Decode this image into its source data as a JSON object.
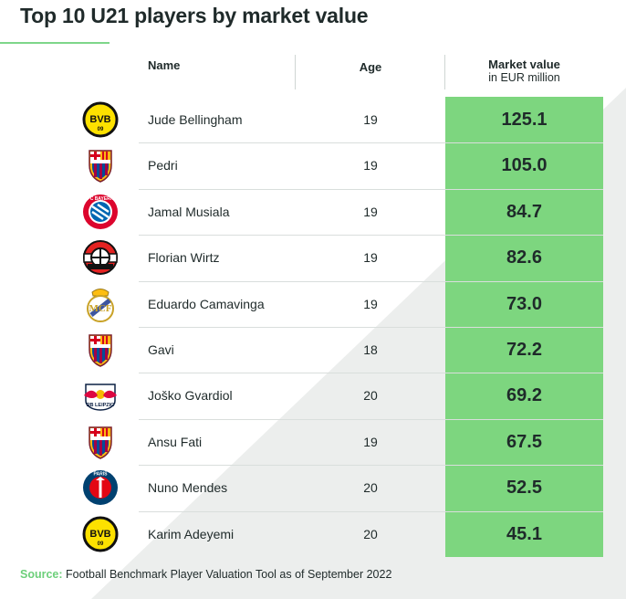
{
  "header": {
    "title": "Top 10 U21 players by market value",
    "col_name": "Name",
    "col_age": "Age",
    "col_value": "Market value",
    "col_value_unit": "in EUR million"
  },
  "chart_data": {
    "type": "table",
    "title": "Top 10 U21 players by market value",
    "columns": [
      "Name",
      "Age",
      "Market value in EUR million"
    ],
    "rows": [
      {
        "club_icon": "bvb-logo-icon",
        "name": "Jude Bellingham",
        "age": "19",
        "value": "125.1"
      },
      {
        "club_icon": "fcb-barcelona-logo-icon",
        "name": "Pedri",
        "age": "19",
        "value": "105.0"
      },
      {
        "club_icon": "bayern-logo-icon",
        "name": "Jamal Musiala",
        "age": "19",
        "value": "84.7"
      },
      {
        "club_icon": "leverkusen-logo-icon",
        "name": "Florian Wirtz",
        "age": "19",
        "value": "82.6"
      },
      {
        "club_icon": "real-madrid-logo-icon",
        "name": "Eduardo Camavinga",
        "age": "19",
        "value": "73.0"
      },
      {
        "club_icon": "fcb-barcelona-logo-icon",
        "name": "Gavi",
        "age": "18",
        "value": "72.2"
      },
      {
        "club_icon": "rb-leipzig-logo-icon",
        "name": "Joško Gvardiol",
        "age": "20",
        "value": "69.2"
      },
      {
        "club_icon": "fcb-barcelona-logo-icon",
        "name": "Ansu Fati",
        "age": "19",
        "value": "67.5"
      },
      {
        "club_icon": "psg-logo-icon",
        "name": "Nuno Mendes",
        "age": "20",
        "value": "52.5"
      },
      {
        "club_icon": "bvb-logo-icon",
        "name": "Karim Adeyemi",
        "age": "20",
        "value": "45.1"
      }
    ]
  },
  "footer": {
    "source_label": "Source:",
    "source_text": " Football Benchmark Player Valuation Tool as of September 2022"
  },
  "colors": {
    "accent_green": "#7dd67f",
    "source_green": "#6ccf7a",
    "text": "#1f2a2a",
    "bvb_yellow": "#fde100",
    "barca_blue": "#004d98",
    "barca_red": "#a50044",
    "bayern_red": "#dc052d",
    "psg_navy": "#004170"
  }
}
